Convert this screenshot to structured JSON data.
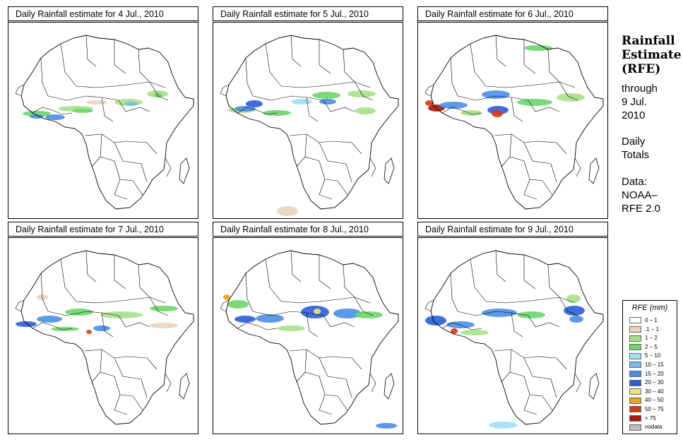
{
  "panels": [
    {
      "title": "Daily Rainfall estimate for  4 Jul., 2010",
      "key": "d4"
    },
    {
      "title": "Daily Rainfall estimate for  5 Jul., 2010",
      "key": "d5"
    },
    {
      "title": "Daily Rainfall estimate for  6 Jul., 2010",
      "key": "d6"
    },
    {
      "title": "Daily Rainfall estimate for  7 Jul., 2010",
      "key": "d7"
    },
    {
      "title": "Daily Rainfall estimate for  8 Jul., 2010",
      "key": "d8"
    },
    {
      "title": "Daily Rainfall estimate for  9 Jul., 2010",
      "key": "d9"
    }
  ],
  "sidebar": {
    "title_line1": "Rainfall",
    "title_line2": "Estimate",
    "title_line3": "(RFE)",
    "through_line1": "through",
    "through_line2": "9 Jul.",
    "through_line3": "2010",
    "daily_line1": "Daily",
    "daily_line2": "Totals",
    "data_line1": "Data:",
    "data_line2": "NOAA–",
    "data_line3": "RFE 2.0"
  },
  "legend": {
    "title": "RFE (mm)",
    "items": [
      {
        "label": "0 – 1",
        "color": "#ffffff"
      },
      {
        "label": ".1 – 1",
        "color": "#e8d4bf"
      },
      {
        "label": "1 – 2",
        "color": "#a8e08a"
      },
      {
        "label": "2 – 5",
        "color": "#6cd66a"
      },
      {
        "label": "5 – 10",
        "color": "#9fe0f4"
      },
      {
        "label": "10 – 15",
        "color": "#78b8ee"
      },
      {
        "label": "15 – 20",
        "color": "#4a8ee6"
      },
      {
        "label": "20 – 30",
        "color": "#2a5ed8"
      },
      {
        "label": "30 – 40",
        "color": "#f8e070"
      },
      {
        "label": "40 – 50",
        "color": "#f0a020"
      },
      {
        "label": "50 – 75",
        "color": "#d83a10"
      },
      {
        "label": "> 75",
        "color": "#a81808"
      },
      {
        "label": "nodata",
        "color": "#bbbbbb"
      }
    ]
  }
}
